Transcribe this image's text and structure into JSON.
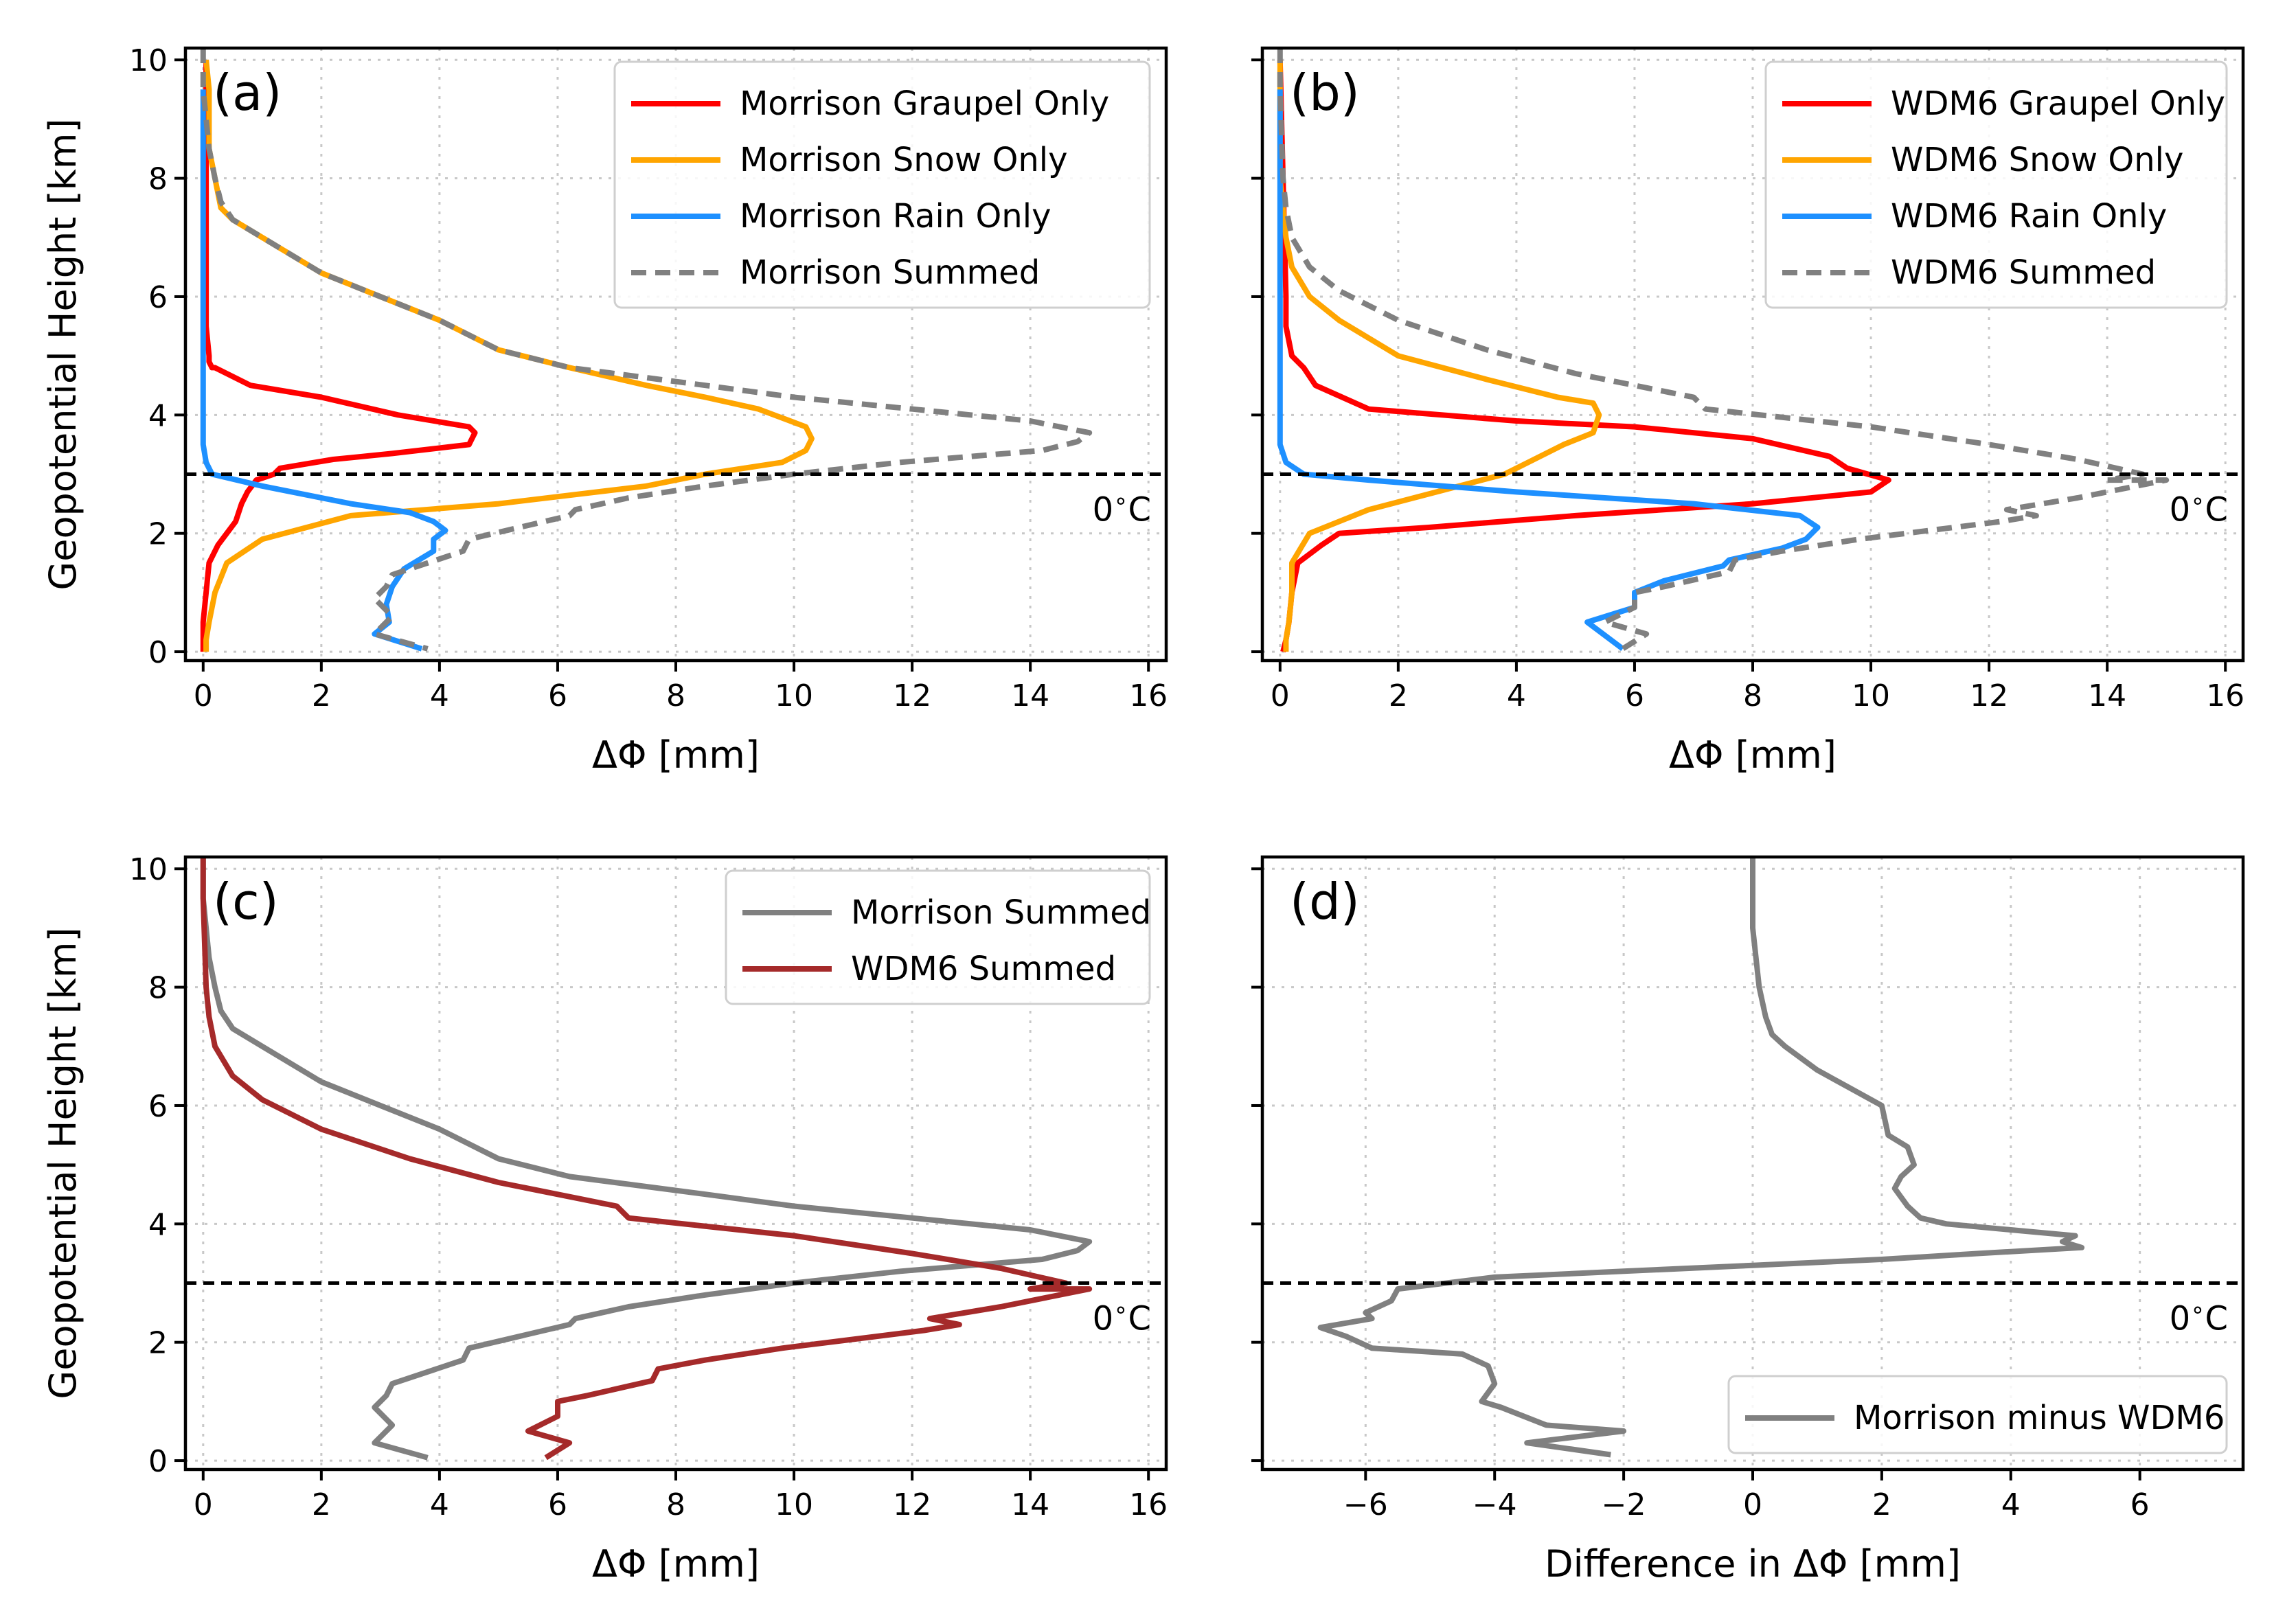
{
  "figure": {
    "annotation_freezing": "0$^\\circ$C",
    "freezing_level_km": 3.0
  },
  "chart_data": [
    {
      "id": "a",
      "type": "line",
      "panel_tag": "(a)",
      "xlabel": "ΔΦ  [mm]",
      "ylabel": "Geopotential Height  [km]",
      "xlim": [
        -0.3,
        16.3
      ],
      "ylim": [
        -0.15,
        10.2
      ],
      "xticks": [
        0,
        2,
        4,
        6,
        8,
        10,
        12,
        14,
        16
      ],
      "xtick_labels": [
        "0",
        "2",
        "4",
        "6",
        "8",
        "10",
        "12",
        "14",
        "16"
      ],
      "yticks": [
        0,
        2,
        4,
        6,
        8,
        10
      ],
      "ytick_labels": [
        "0",
        "2",
        "4",
        "6",
        "8",
        "10"
      ],
      "show_ylabels": true,
      "annotation": "0$^\\circ$C",
      "hline": 3.0,
      "legend": "top-right",
      "series": [
        {
          "name": "Morrison Graupel Only",
          "color": "#ff0000",
          "dash": "",
          "x": [
            0.05,
            0.05,
            0.05,
            0.05,
            0.1,
            0.1,
            0.15,
            0.2,
            0.8,
            2.0,
            3.3,
            4.5,
            4.6,
            4.5,
            3.2,
            2.2,
            1.3,
            1.2,
            0.9,
            0.75,
            0.65,
            0.55,
            0.25,
            0.1,
            0.05,
            0.0,
            0.0,
            0.0
          ],
          "y": [
            10,
            8,
            6,
            5.5,
            5.0,
            4.9,
            4.8,
            4.8,
            4.5,
            4.3,
            4.0,
            3.8,
            3.7,
            3.5,
            3.35,
            3.25,
            3.1,
            3.0,
            2.9,
            2.7,
            2.5,
            2.2,
            1.8,
            1.5,
            1.0,
            0.5,
            0.2,
            0.0
          ]
        },
        {
          "name": "Morrison Snow Only",
          "color": "#ffa500",
          "dash": "",
          "x": [
            0.05,
            0.1,
            0.1,
            0.1,
            0.2,
            0.3,
            0.5,
            1.0,
            2.0,
            3.0,
            4.0,
            5.0,
            6.2,
            7.5,
            8.5,
            9.4,
            10.2,
            10.3,
            10.2,
            9.8,
            8.5,
            7.5,
            5.0,
            2.5,
            1.0,
            0.4,
            0.2,
            0.1,
            0.05,
            0.05
          ],
          "y": [
            10,
            9.5,
            9.0,
            8.5,
            8.0,
            7.5,
            7.3,
            7.0,
            6.4,
            6.0,
            5.6,
            5.1,
            4.8,
            4.5,
            4.3,
            4.1,
            3.8,
            3.6,
            3.4,
            3.2,
            3.0,
            2.8,
            2.5,
            2.3,
            1.9,
            1.5,
            1.0,
            0.5,
            0.2,
            0.0
          ]
        },
        {
          "name": "Morrison Rain Only",
          "color": "#1e90ff",
          "dash": "",
          "x": [
            0.0,
            0.0,
            0.0,
            0.0,
            0.0,
            0.0,
            0.05,
            0.15,
            1.0,
            2.5,
            3.5,
            3.9,
            4.1,
            3.9,
            3.9,
            3.4,
            3.2,
            3.1,
            3.15,
            2.9,
            3.7
          ],
          "y": [
            9.5,
            8.0,
            6.0,
            5.0,
            4.0,
            3.5,
            3.2,
            3.0,
            2.8,
            2.5,
            2.35,
            2.2,
            2.05,
            1.9,
            1.7,
            1.4,
            1.1,
            0.8,
            0.5,
            0.3,
            0.05
          ]
        },
        {
          "name": "Morrison Summed",
          "color": "#808080",
          "dash": "22 13",
          "x": [
            0.0,
            0.0,
            0.1,
            0.2,
            0.3,
            0.5,
            1.0,
            2.0,
            3.0,
            4.0,
            5.0,
            6.2,
            8.5,
            10.0,
            12.0,
            14.0,
            15.0,
            14.8,
            14.2,
            11.8,
            10.0,
            8.5,
            7.2,
            6.3,
            6.2,
            4.5,
            4.4,
            3.8,
            3.2,
            3.1,
            2.9,
            3.2,
            2.9,
            3.8
          ],
          "y": [
            10.2,
            9.5,
            8.5,
            8.0,
            7.6,
            7.3,
            7.0,
            6.4,
            6.0,
            5.6,
            5.1,
            4.8,
            4.5,
            4.3,
            4.1,
            3.9,
            3.7,
            3.55,
            3.4,
            3.2,
            3.0,
            2.8,
            2.6,
            2.4,
            2.3,
            1.9,
            1.7,
            1.5,
            1.3,
            1.1,
            0.9,
            0.6,
            0.3,
            0.05
          ]
        }
      ]
    },
    {
      "id": "b",
      "type": "line",
      "panel_tag": "(b)",
      "xlabel": "ΔΦ  [mm]",
      "ylabel": "",
      "xlim": [
        -0.3,
        16.3
      ],
      "ylim": [
        -0.15,
        10.2
      ],
      "xticks": [
        0,
        2,
        4,
        6,
        8,
        10,
        12,
        14,
        16
      ],
      "xtick_labels": [
        "0",
        "2",
        "4",
        "6",
        "8",
        "10",
        "12",
        "14",
        "16"
      ],
      "yticks": [
        0,
        2,
        4,
        6,
        8,
        10
      ],
      "ytick_labels": [
        "0",
        "2",
        "4",
        "6",
        "8",
        "10"
      ],
      "show_ylabels": false,
      "annotation": "0$^\\circ$C",
      "hline": 3.0,
      "legend": "top-right",
      "series": [
        {
          "name": "WDM6 Graupel Only",
          "color": "#ff0000",
          "dash": "",
          "x": [
            0.0,
            0.05,
            0.1,
            0.1,
            0.2,
            0.4,
            0.6,
            1.5,
            4.0,
            6.0,
            8.0,
            9.3,
            9.6,
            10.3,
            10.0,
            8.0,
            5.0,
            2.5,
            1.0,
            0.7,
            0.3,
            0.2,
            0.15,
            0.1,
            0.05
          ],
          "y": [
            10,
            8,
            6,
            5.5,
            5.0,
            4.8,
            4.5,
            4.1,
            3.9,
            3.8,
            3.6,
            3.3,
            3.1,
            2.9,
            2.7,
            2.5,
            2.3,
            2.1,
            2.0,
            1.8,
            1.5,
            1.0,
            0.5,
            0.2,
            0.0
          ]
        },
        {
          "name": "WDM6 Snow Only",
          "color": "#ffa500",
          "dash": "",
          "x": [
            0.0,
            0.0,
            0.05,
            0.1,
            0.2,
            0.5,
            1.0,
            2.0,
            3.5,
            4.7,
            5.3,
            5.4,
            5.3,
            4.8,
            4.2,
            3.8,
            1.5,
            0.5,
            0.2,
            0.2,
            0.15,
            0.1,
            0.1
          ],
          "y": [
            10,
            8.0,
            7.5,
            7.0,
            6.5,
            6.0,
            5.6,
            5.0,
            4.6,
            4.3,
            4.2,
            4.0,
            3.7,
            3.5,
            3.2,
            3.0,
            2.4,
            2.0,
            1.5,
            1.0,
            0.5,
            0.2,
            0.0
          ]
        },
        {
          "name": "WDM6 Rain Only",
          "color": "#1e90ff",
          "dash": "",
          "x": [
            0.0,
            0.0,
            0.0,
            0.0,
            0.0,
            0.0,
            0.1,
            0.4,
            1.5,
            4.0,
            7.0,
            8.8,
            9.1,
            8.9,
            8.5,
            7.6,
            7.5,
            6.5,
            6.0,
            6.0,
            5.2,
            5.8
          ],
          "y": [
            9.5,
            8.0,
            6.0,
            5.0,
            4.0,
            3.5,
            3.2,
            3.0,
            2.9,
            2.7,
            2.5,
            2.3,
            2.1,
            1.9,
            1.75,
            1.55,
            1.45,
            1.2,
            1.0,
            0.75,
            0.5,
            0.05
          ]
        },
        {
          "name": "WDM6 Summed",
          "color": "#808080",
          "dash": "22 13",
          "x": [
            0.0,
            0.0,
            0.05,
            0.1,
            0.2,
            0.5,
            1.0,
            2.0,
            3.5,
            5.0,
            7.0,
            7.2,
            10.0,
            12.0,
            13.5,
            14.6,
            14.0,
            15.0,
            13.5,
            12.3,
            12.8,
            12.2,
            9.8,
            8.5,
            7.7,
            7.6,
            6.5,
            6.0,
            6.0,
            5.5,
            6.2,
            5.8
          ],
          "y": [
            10.2,
            9.5,
            8.0,
            7.5,
            7.0,
            6.5,
            6.1,
            5.6,
            5.1,
            4.7,
            4.3,
            4.1,
            3.8,
            3.5,
            3.25,
            3.0,
            2.9,
            2.9,
            2.6,
            2.4,
            2.3,
            2.2,
            1.9,
            1.7,
            1.55,
            1.35,
            1.1,
            1.0,
            0.75,
            0.5,
            0.3,
            0.05
          ]
        }
      ]
    },
    {
      "id": "c",
      "type": "line",
      "panel_tag": "(c)",
      "xlabel": "ΔΦ  [mm]",
      "ylabel": "Geopotential Height  [km]",
      "xlim": [
        -0.3,
        16.3
      ],
      "ylim": [
        -0.15,
        10.2
      ],
      "xticks": [
        0,
        2,
        4,
        6,
        8,
        10,
        12,
        14,
        16
      ],
      "xtick_labels": [
        "0",
        "2",
        "4",
        "6",
        "8",
        "10",
        "12",
        "14",
        "16"
      ],
      "yticks": [
        0,
        2,
        4,
        6,
        8,
        10
      ],
      "ytick_labels": [
        "0",
        "2",
        "4",
        "6",
        "8",
        "10"
      ],
      "show_ylabels": true,
      "annotation": "0$^\\circ$C",
      "hline": 3.0,
      "legend": "top-right",
      "series": [
        {
          "name": "Morrison Summed",
          "color": "#808080",
          "dash": "",
          "x": [
            0.0,
            0.0,
            0.1,
            0.2,
            0.3,
            0.5,
            1.0,
            2.0,
            3.0,
            4.0,
            5.0,
            6.2,
            8.5,
            10.0,
            12.0,
            14.0,
            15.0,
            14.8,
            14.2,
            11.8,
            10.0,
            8.5,
            7.2,
            6.3,
            6.2,
            4.5,
            4.4,
            3.8,
            3.2,
            3.1,
            2.9,
            3.2,
            2.9,
            3.8
          ],
          "y": [
            10.2,
            9.5,
            8.5,
            8.0,
            7.6,
            7.3,
            7.0,
            6.4,
            6.0,
            5.6,
            5.1,
            4.8,
            4.5,
            4.3,
            4.1,
            3.9,
            3.7,
            3.55,
            3.4,
            3.2,
            3.0,
            2.8,
            2.6,
            2.4,
            2.3,
            1.9,
            1.7,
            1.5,
            1.3,
            1.1,
            0.9,
            0.6,
            0.3,
            0.05
          ]
        },
        {
          "name": "WDM6 Summed",
          "color": "#a52a2a",
          "dash": "",
          "x": [
            0.0,
            0.0,
            0.05,
            0.1,
            0.2,
            0.5,
            1.0,
            2.0,
            3.5,
            5.0,
            7.0,
            7.2,
            10.0,
            12.0,
            13.5,
            14.6,
            14.0,
            15.0,
            13.5,
            12.3,
            12.8,
            12.2,
            9.8,
            8.5,
            7.7,
            7.6,
            6.5,
            6.0,
            6.0,
            5.5,
            6.2,
            5.8
          ],
          "y": [
            10.2,
            9.5,
            8.0,
            7.5,
            7.0,
            6.5,
            6.1,
            5.6,
            5.1,
            4.7,
            4.3,
            4.1,
            3.8,
            3.5,
            3.25,
            3.0,
            2.9,
            2.9,
            2.6,
            2.4,
            2.3,
            2.2,
            1.9,
            1.7,
            1.55,
            1.35,
            1.1,
            1.0,
            0.75,
            0.5,
            0.3,
            0.05
          ]
        }
      ]
    },
    {
      "id": "d",
      "type": "line",
      "panel_tag": "(d)",
      "xlabel": "Difference in ΔΦ  [mm]",
      "ylabel": "",
      "xlim": [
        -7.6,
        7.6
      ],
      "ylim": [
        -0.15,
        10.2
      ],
      "xticks": [
        -6,
        -4,
        -2,
        0,
        2,
        4,
        6
      ],
      "xtick_labels": [
        "−6",
        "−4",
        "−2",
        "0",
        "2",
        "4",
        "6"
      ],
      "yticks": [
        0,
        2,
        4,
        6,
        8,
        10
      ],
      "ytick_labels": [
        "0",
        "2",
        "4",
        "6",
        "8",
        "10"
      ],
      "show_ylabels": false,
      "annotation": "0$^\\circ$C",
      "hline": 3.0,
      "legend": "lower-right",
      "series": [
        {
          "name": "Morrison minus WDM6",
          "color": "#808080",
          "dash": "",
          "x": [
            0.0,
            0.0,
            0.1,
            0.2,
            0.3,
            0.5,
            1.0,
            1.5,
            2.0,
            2.1,
            2.4,
            2.5,
            2.3,
            2.2,
            2.4,
            2.6,
            3.0,
            4.0,
            5.0,
            4.8,
            5.1,
            3.5,
            2.0,
            0.0,
            -2.0,
            -4.0,
            -5.5,
            -5.6,
            -6.0,
            -5.9,
            -6.7,
            -6.3,
            -5.9,
            -4.5,
            -4.1,
            -4.0,
            -4.2,
            -3.9,
            -3.2,
            -2.0,
            -3.5,
            -2.2
          ],
          "y": [
            10.2,
            9.0,
            8.0,
            7.5,
            7.2,
            7.0,
            6.6,
            6.3,
            6.0,
            5.5,
            5.3,
            5.0,
            4.8,
            4.6,
            4.3,
            4.1,
            4.0,
            3.9,
            3.8,
            3.7,
            3.6,
            3.5,
            3.4,
            3.3,
            3.2,
            3.1,
            2.9,
            2.7,
            2.5,
            2.4,
            2.25,
            2.1,
            1.9,
            1.8,
            1.6,
            1.3,
            1.0,
            0.9,
            0.6,
            0.5,
            0.3,
            0.1
          ]
        }
      ]
    }
  ]
}
